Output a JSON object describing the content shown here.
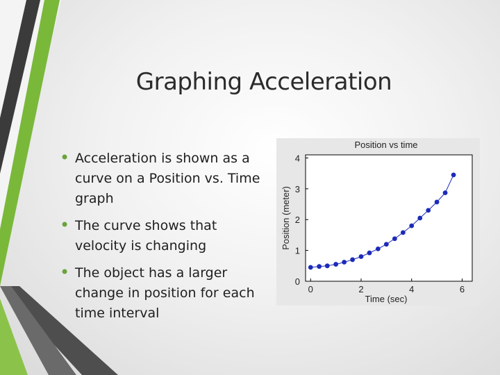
{
  "slide": {
    "title": "Graphing Acceleration",
    "bullets": [
      "Acceleration is shown as a curve on a Position vs. Time graph",
      "The curve shows that velocity is changing",
      "The object has a larger change in position for each time interval"
    ],
    "accent_color": "#6aa33a",
    "stripe_color": "#3a3a3a"
  },
  "chart_data": {
    "type": "scatter",
    "title": "Position vs time",
    "xlabel": "Time (sec)",
    "ylabel": "Position (meter)",
    "xlim": [
      -0.2,
      6.4
    ],
    "ylim": [
      0,
      4.1
    ],
    "xticks": [
      0,
      2,
      4,
      6
    ],
    "yticks": [
      0,
      1,
      2,
      3,
      4
    ],
    "marker_color": "#1c2bb8",
    "line": true,
    "grid": false,
    "x": [
      0.0,
      0.34,
      0.66,
      1.0,
      1.33,
      1.66,
      2.0,
      2.33,
      2.67,
      3.0,
      3.33,
      3.66,
      4.0,
      4.33,
      4.66,
      5.0,
      5.33,
      5.66
    ],
    "y": [
      0.45,
      0.48,
      0.5,
      0.55,
      0.62,
      0.7,
      0.8,
      0.92,
      1.05,
      1.2,
      1.38,
      1.58,
      1.8,
      2.05,
      2.3,
      2.57,
      2.87,
      3.45
    ]
  }
}
